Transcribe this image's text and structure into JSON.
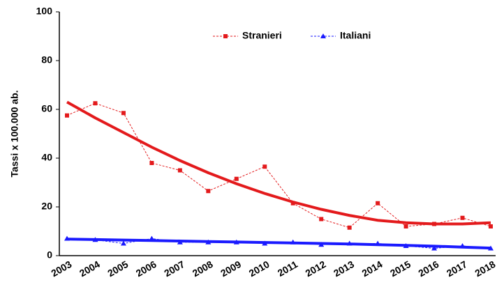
{
  "chart_data": {
    "type": "line",
    "ylabel": "Tassi x 100.000 ab.",
    "categories": [
      "2003",
      "2004",
      "2005",
      "2006",
      "2007",
      "2008",
      "2009",
      "2010",
      "2011",
      "2012",
      "2013",
      "2014",
      "2015",
      "2016",
      "2017",
      "2018"
    ],
    "series": [
      {
        "name": "Stranieri",
        "color": "#e31a1c",
        "marker": "square",
        "values": [
          57.5,
          62.5,
          58.5,
          38,
          35,
          26.5,
          31.5,
          36.5,
          21.5,
          15,
          11.5,
          21.5,
          12,
          13,
          15.5,
          12
        ]
      },
      {
        "name": "Italiani",
        "color": "#1a1aff",
        "marker": "triangle",
        "values": [
          7,
          6.5,
          5,
          7,
          5.5,
          5.5,
          5.5,
          5,
          5.5,
          4.5,
          5,
          5,
          4,
          3,
          4,
          3
        ]
      }
    ],
    "trendlines": [
      {
        "color": "#e31a1c",
        "values": [
          63,
          56.5,
          50.5,
          44.5,
          39,
          34,
          29.5,
          25.5,
          22,
          19,
          16.5,
          14.5,
          13.5,
          13,
          13,
          13.5
        ]
      },
      {
        "color": "#1a1aff",
        "values": [
          6.8,
          6.6,
          6.4,
          6.2,
          6,
          5.8,
          5.6,
          5.4,
          5.2,
          5,
          4.8,
          4.5,
          4.2,
          3.9,
          3.5,
          3.1
        ]
      }
    ],
    "ylim": [
      0,
      100
    ],
    "yticks": [
      0,
      20,
      40,
      60,
      80,
      100
    ],
    "grid": false
  }
}
